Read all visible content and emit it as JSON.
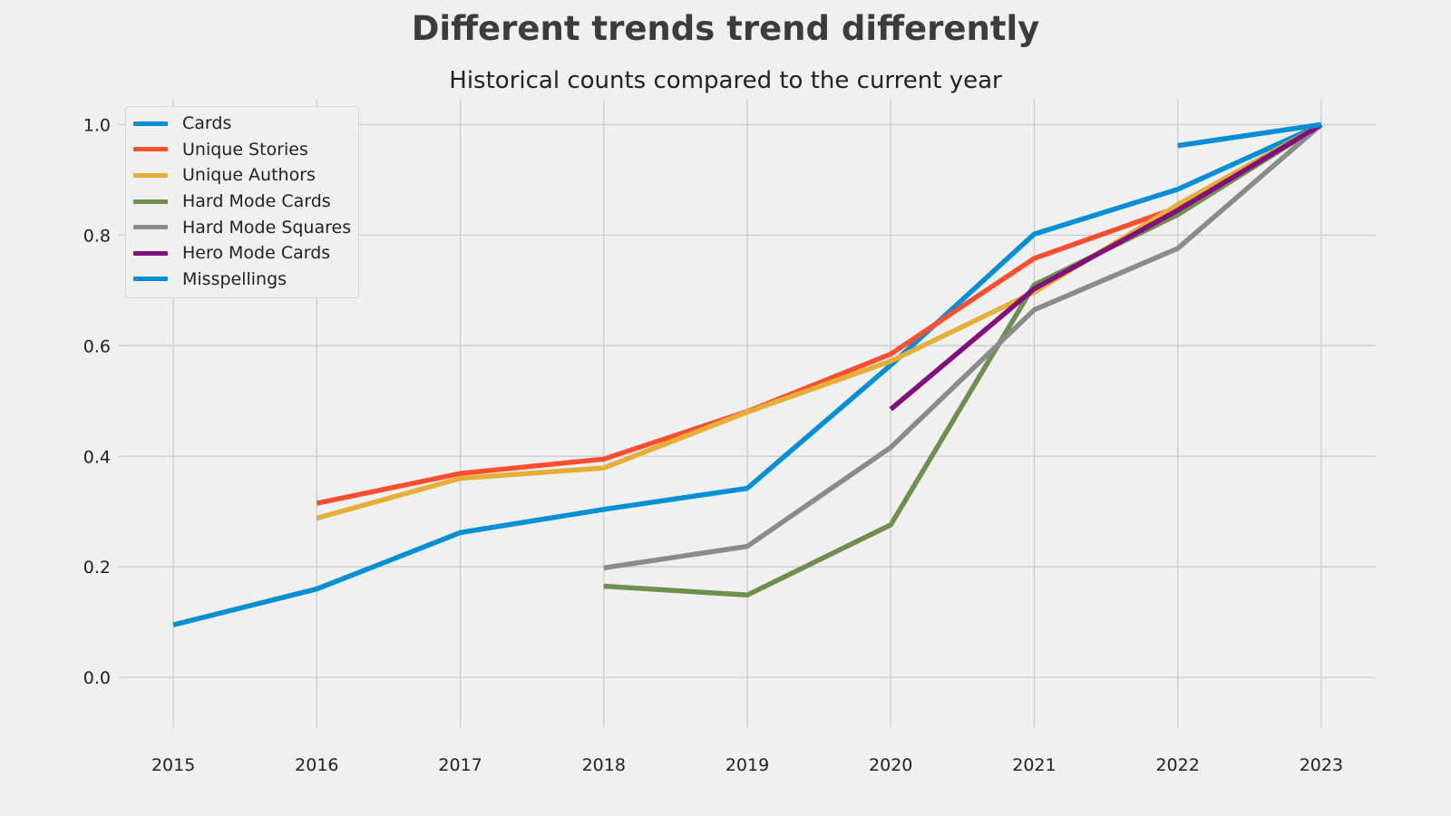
{
  "chart_data": {
    "type": "line",
    "title": "Different trends trend differently",
    "subtitle": "Historical counts compared to the current year",
    "xlabel": "",
    "ylabel": "",
    "xlim": [
      2014.62,
      2023.38
    ],
    "ylim": [
      -0.09,
      1.045
    ],
    "x_ticks": [
      2015,
      2016,
      2017,
      2018,
      2019,
      2020,
      2021,
      2022,
      2023
    ],
    "y_ticks": [
      "0.0",
      "0.2",
      "0.4",
      "0.6",
      "0.8",
      "1.0"
    ],
    "grid": true,
    "legend_position": "top-left",
    "series": [
      {
        "name": "Cards",
        "color": "#008fd5",
        "points": [
          [
            2015,
            0.095
          ],
          [
            2016,
            0.16
          ],
          [
            2017,
            0.262
          ],
          [
            2018,
            0.304
          ],
          [
            2019,
            0.342
          ],
          [
            2020,
            0.565
          ],
          [
            2021,
            0.802
          ],
          [
            2022,
            0.883
          ],
          [
            2023,
            1.0
          ]
        ]
      },
      {
        "name": "Unique Stories",
        "color": "#fc4f30",
        "points": [
          [
            2016,
            0.315
          ],
          [
            2017,
            0.369
          ],
          [
            2018,
            0.395
          ],
          [
            2019,
            0.481
          ],
          [
            2020,
            0.585
          ],
          [
            2021,
            0.758
          ],
          [
            2022,
            0.85
          ],
          [
            2023,
            1.0
          ]
        ]
      },
      {
        "name": "Unique Authors",
        "color": "#e5ae38",
        "points": [
          [
            2016,
            0.288
          ],
          [
            2017,
            0.36
          ],
          [
            2018,
            0.379
          ],
          [
            2019,
            0.48
          ],
          [
            2020,
            0.572
          ],
          [
            2021,
            0.697
          ],
          [
            2022,
            0.855
          ],
          [
            2023,
            1.0
          ]
        ]
      },
      {
        "name": "Hard Mode Cards",
        "color": "#6d904f",
        "points": [
          [
            2018,
            0.165
          ],
          [
            2019,
            0.149
          ],
          [
            2020,
            0.276
          ],
          [
            2021,
            0.71
          ],
          [
            2022,
            0.837
          ],
          [
            2023,
            1.0
          ]
        ]
      },
      {
        "name": "Hard Mode Squares",
        "color": "#8b8b8b",
        "points": [
          [
            2018,
            0.198
          ],
          [
            2019,
            0.237
          ],
          [
            2020,
            0.416
          ],
          [
            2021,
            0.665
          ],
          [
            2022,
            0.776
          ],
          [
            2023,
            1.0
          ]
        ]
      },
      {
        "name": "Hero Mode Cards",
        "color": "#810f7c",
        "points": [
          [
            2020,
            0.485
          ],
          [
            2021,
            0.703
          ],
          [
            2022,
            0.845
          ],
          [
            2023,
            1.0
          ]
        ]
      },
      {
        "name": "Misspellings",
        "color": "#008fd5",
        "points": [
          [
            2022,
            0.962
          ],
          [
            2023,
            1.0
          ]
        ]
      }
    ]
  }
}
